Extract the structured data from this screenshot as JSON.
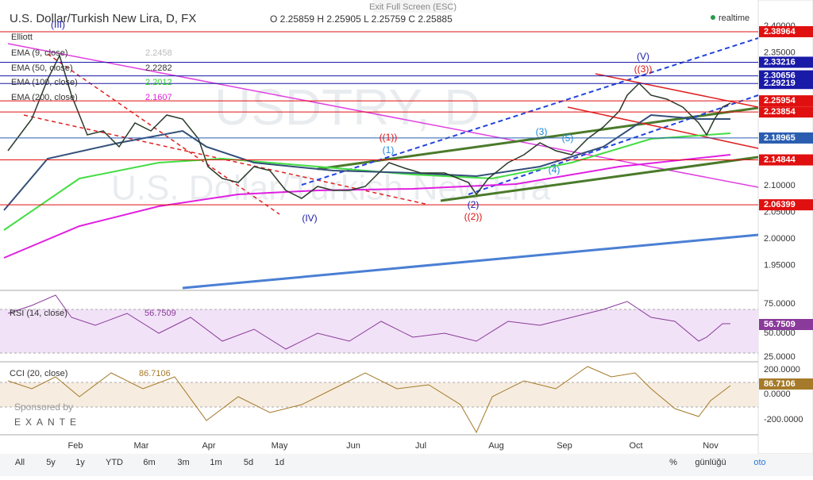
{
  "header": {
    "exit": "Exit Full Screen (ESC)",
    "symbol": "U.S. Dollar/Turkish New Lira, D, FX",
    "ohlc": "O 2.25859 H 2.25905 L 2.25759 C 2.25885",
    "realtime": "realtime"
  },
  "watermark": {
    "ticker": "USDTRY, D",
    "name": "U.S. Dollar/Turkish New Lira"
  },
  "indicators": [
    {
      "name": "Elliott",
      "value": ""
    },
    {
      "name": "EMA (9, close)",
      "value": "2.2458",
      "color": "#bbbbbb"
    },
    {
      "name": "EMA (50, close)",
      "value": "2.2282",
      "color": "#333333"
    },
    {
      "name": "EMA (100, close)",
      "value": "2.2012",
      "color": "#2ecc2e"
    },
    {
      "name": "EMA (200, close)",
      "value": "2.1607",
      "color": "#e020e0"
    }
  ],
  "waves": [
    "(III)",
    "(IV)",
    "(V)",
    "((1))",
    "((2))",
    "((3))",
    "(1)",
    "(2)",
    "(3)",
    "(4)",
    "(5)"
  ],
  "price_ticks": [
    {
      "value": 2.4,
      "label": "2.40000"
    },
    {
      "value": 2.35,
      "label": "2.35000"
    },
    {
      "value": 2.1,
      "label": "2.10000"
    },
    {
      "value": 2.05,
      "label": "2.05000"
    },
    {
      "value": 2.0,
      "label": "2.00000"
    },
    {
      "value": 1.95,
      "label": "1.95000"
    }
  ],
  "price_tags": [
    {
      "value": 2.38964,
      "label": "2.38964",
      "color": "#e01010"
    },
    {
      "value": 2.33216,
      "label": "2.33216",
      "color": "#1a1aa8"
    },
    {
      "value": 2.30656,
      "label": "2.30656",
      "color": "#1a1aa8"
    },
    {
      "value": 2.29219,
      "label": "2.29219",
      "color": "#1a1aa8"
    },
    {
      "value": 2.25954,
      "label": "2.25954",
      "color": "#e01010"
    },
    {
      "value": 2.23854,
      "label": "2.23854",
      "color": "#e01010"
    },
    {
      "value": 2.18965,
      "label": "2.18965",
      "color": "#2a5db0"
    },
    {
      "value": 2.14844,
      "label": "2.14844",
      "color": "#e01010"
    },
    {
      "value": 2.06399,
      "label": "2.06399",
      "color": "#e01010"
    }
  ],
  "rsi": {
    "title": "RSI (14, close)",
    "value": "56.7509",
    "ticks": [
      "75.0000",
      "50.0000",
      "25.0000"
    ]
  },
  "cci": {
    "title": "CCI (20, close)",
    "value": "86.7106",
    "ticks": [
      "200.0000",
      "0.0000",
      "-200.0000"
    ]
  },
  "sponsor": {
    "text": "Sponsored by",
    "brand": "EXANTE"
  },
  "months": [
    "Feb",
    "Mar",
    "Apr",
    "May",
    "Jun",
    "Jul",
    "Aug",
    "Sep",
    "Oct",
    "Nov"
  ],
  "toolbar": {
    "ranges": [
      "All",
      "5y",
      "1y",
      "YTD",
      "6m",
      "3m",
      "1m",
      "5d",
      "1d"
    ],
    "right": [
      "%",
      "günlüğü",
      "oto"
    ]
  }
}
